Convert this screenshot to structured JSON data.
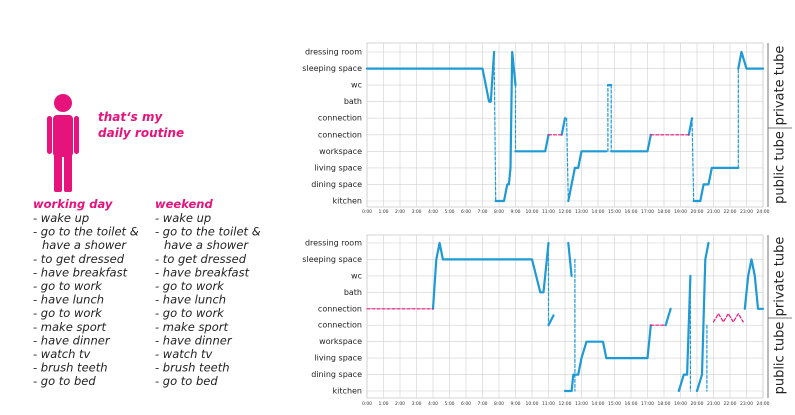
{
  "header": {
    "title_line1": "that‘s my",
    "title_line2": "daily routine"
  },
  "lists": {
    "working_day": {
      "title": "working day",
      "items": [
        "- wake up",
        "- go to the toilet &",
        "have a shower",
        "- to get dressed",
        "- have breakfast",
        "- go to work",
        "- have lunch",
        "- go to work",
        "- make sport",
        "- have dinner",
        "- watch tv",
        "- brush teeth",
        "- go to bed"
      ]
    },
    "weekend": {
      "title": "weekend",
      "items": [
        "- wake up",
        "- go to the toilet &",
        "have a shower",
        "- to get dressed",
        "- have breakfast",
        "- go to work",
        "- have lunch",
        "- go to work",
        "- make sport",
        "- have dinner",
        "- watch tv",
        "- brush teeth",
        "- go to bed"
      ]
    }
  },
  "chart_data": [
    {
      "type": "line",
      "categories": [
        "kitchen",
        "dining space",
        "living space",
        "workspace",
        "connection",
        "connection",
        "bath",
        "wc",
        "sleeping space",
        "dressing room"
      ],
      "side_labels": [
        "private tube",
        "public tube"
      ],
      "xlim": [
        0,
        24
      ],
      "xticks": [
        {
          "value": 0,
          "label": "0:00"
        },
        {
          "value": 1,
          "label": "1:00"
        },
        {
          "value": 2,
          "label": "2:00"
        },
        {
          "value": 3,
          "label": "3:00"
        },
        {
          "value": 4,
          "label": "4:00"
        },
        {
          "value": 5,
          "label": "5:00"
        },
        {
          "value": 6,
          "label": "6:00"
        },
        {
          "value": 7,
          "label": "7:00"
        },
        {
          "value": 8,
          "label": "8:00"
        },
        {
          "value": 9,
          "label": "9:00"
        },
        {
          "value": 10,
          "label": "10:00"
        },
        {
          "value": 11,
          "label": "11:00"
        },
        {
          "value": 12,
          "label": "12:00"
        },
        {
          "value": 13,
          "label": "13:00"
        },
        {
          "value": 14,
          "label": "14:00"
        },
        {
          "value": 15,
          "label": "15:00"
        },
        {
          "value": 16,
          "label": "16:00"
        },
        {
          "value": 17,
          "label": "17:00"
        },
        {
          "value": 18,
          "label": "18:00"
        },
        {
          "value": 19,
          "label": "19:00"
        },
        {
          "value": 20,
          "label": "20:00"
        },
        {
          "value": 21,
          "label": "21:00"
        },
        {
          "value": 22,
          "label": "22:00"
        },
        {
          "value": 23,
          "label": "23:00"
        },
        {
          "value": 24,
          "label": "24:00"
        }
      ],
      "grid": true,
      "series": [
        {
          "color": "#1e9ad6",
          "dashed": false,
          "x": [
            0,
            7,
            7.4,
            7.5,
            7.7,
            null,
            7.8,
            8.3,
            8.5,
            8.6,
            8.7,
            8.8,
            9.0,
            null,
            9.0,
            10.8,
            11,
            null,
            11.8,
            12,
            null,
            12.2,
            12.4,
            12.6,
            12.8,
            13,
            14.5,
            null,
            14.6,
            14.8,
            null,
            14.8,
            17,
            17.2,
            null,
            19.5,
            19.7,
            null,
            19.8,
            20.2,
            20.4,
            20.7,
            20.9,
            22.5,
            null,
            22.5,
            22.7,
            23,
            24
          ],
          "y": [
            8,
            8,
            6,
            6,
            9,
            null,
            0,
            0,
            1,
            1,
            2,
            9,
            7,
            null,
            3,
            3,
            4,
            null,
            4,
            5,
            null,
            0,
            1,
            2,
            2,
            3,
            3,
            null,
            7,
            7,
            null,
            3,
            3,
            4,
            null,
            4,
            5,
            null,
            0,
            0,
            1,
            1,
            2,
            2,
            null,
            8,
            9,
            8,
            8
          ]
        },
        {
          "color": "#e5137b",
          "dashed": true,
          "x": [
            11,
            11.8,
            null,
            17.2,
            19.5
          ],
          "y": [
            4,
            4,
            null,
            4,
            4
          ]
        },
        {
          "color": "#1e9ad6",
          "dashed": true,
          "x": [
            7.7,
            7.8,
            null,
            9.0,
            9.0,
            null,
            12.1,
            12.2,
            null,
            14.6,
            14.6,
            null,
            14.8,
            14.8,
            null,
            19.7,
            19.8,
            null,
            22.5,
            22.5
          ],
          "y": [
            9,
            0,
            null,
            7,
            3,
            null,
            5,
            0,
            null,
            3,
            7,
            null,
            7,
            3,
            null,
            5,
            0,
            null,
            2,
            8
          ]
        }
      ]
    },
    {
      "type": "line",
      "categories": [
        "kitchen",
        "dining space",
        "living space",
        "workspace",
        "connection",
        "connection",
        "bath",
        "wc",
        "sleeping space",
        "dressing room"
      ],
      "side_labels": [
        "private tube",
        "public tube"
      ],
      "xlim": [
        0,
        24
      ],
      "xticks": [
        {
          "value": 0,
          "label": "0:00"
        },
        {
          "value": 1,
          "label": "1:00"
        },
        {
          "value": 2,
          "label": "2:00"
        },
        {
          "value": 3,
          "label": "3:00"
        },
        {
          "value": 4,
          "label": "4:00"
        },
        {
          "value": 5,
          "label": "5:00"
        },
        {
          "value": 6,
          "label": "6:00"
        },
        {
          "value": 7,
          "label": "7:00"
        },
        {
          "value": 8,
          "label": "8:00"
        },
        {
          "value": 9,
          "label": "9:00"
        },
        {
          "value": 10,
          "label": "10:00"
        },
        {
          "value": 11,
          "label": "11:00"
        },
        {
          "value": 12,
          "label": "12:00"
        },
        {
          "value": 13,
          "label": "13:00"
        },
        {
          "value": 14,
          "label": "14:00"
        },
        {
          "value": 15,
          "label": "15:00"
        },
        {
          "value": 16,
          "label": "16:00"
        },
        {
          "value": 17,
          "label": "17:00"
        },
        {
          "value": 18,
          "label": "18:00"
        },
        {
          "value": 19,
          "label": "19:00"
        },
        {
          "value": 20,
          "label": "20:00"
        },
        {
          "value": 21,
          "label": "21:00"
        },
        {
          "value": 22,
          "label": "22:00"
        },
        {
          "value": 23,
          "label": "23:00"
        },
        {
          "value": 24,
          "label": "24:00"
        }
      ],
      "grid": true,
      "series": [
        {
          "color": "#1e9ad6",
          "dashed": false,
          "x": [
            4,
            4.2,
            4.4,
            4.6,
            10,
            10.5,
            10.7,
            11,
            null,
            11.0,
            11.3,
            null,
            12.2,
            12.4,
            null,
            12.0,
            12.4,
            12.5,
            12.8,
            13,
            13.3,
            14.3,
            14.5,
            17,
            17.2,
            null,
            18.1,
            18.4,
            null,
            18.9,
            19.2,
            19.4,
            19.6,
            null,
            20,
            20.3,
            20.5,
            20.7,
            null,
            22.9,
            23.1,
            23.3,
            23.5,
            23.7,
            24
          ],
          "y": [
            5,
            8,
            9,
            8,
            8,
            6,
            6,
            9,
            null,
            4,
            4.6,
            null,
            9,
            7,
            null,
            0,
            0,
            1,
            1,
            2,
            3,
            3,
            2,
            2,
            4,
            null,
            4,
            5,
            null,
            0,
            1,
            1,
            7,
            null,
            0,
            1,
            8,
            9,
            null,
            5,
            7,
            8,
            7,
            5,
            5
          ]
        },
        {
          "color": "#e5137b",
          "dashed": true,
          "x": [
            0,
            4,
            null,
            17.2,
            18.1,
            null,
            21,
            21.3,
            21.6,
            21.9,
            22.2,
            22.5,
            22.8
          ],
          "y": [
            5,
            5,
            null,
            4,
            4,
            null,
            4.2,
            4.7,
            4.2,
            4.7,
            4.2,
            4.7,
            4.2
          ]
        },
        {
          "color": "#1e9ad6",
          "dashed": true,
          "x": [
            11,
            11,
            null,
            12.6,
            12.6,
            null,
            19.6,
            19.6,
            null,
            20.6,
            20.6
          ],
          "y": [
            9,
            4,
            null,
            8,
            0,
            null,
            7,
            0,
            null,
            4,
            0
          ]
        }
      ]
    }
  ]
}
